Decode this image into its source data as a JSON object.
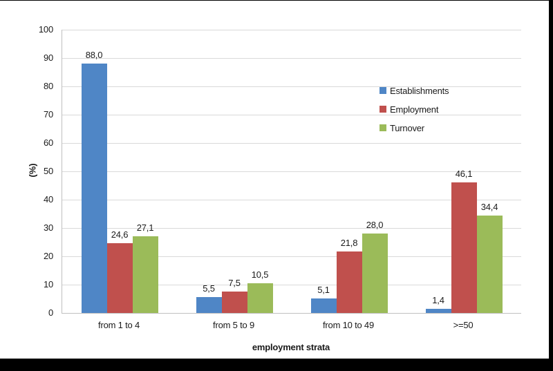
{
  "chart_data": {
    "type": "bar",
    "title": "",
    "xlabel": "employment strata",
    "ylabel": "(%)",
    "categories": [
      "from 1 to 4",
      "from 5 to 9",
      "from 10 to 49",
      ">=50"
    ],
    "series": [
      {
        "name": "Establishments",
        "color": "#4F86C6",
        "values": [
          88.0,
          5.5,
          5.1,
          1.4
        ],
        "labels": [
          "88,0",
          "5,5",
          "5,1",
          "1,4"
        ]
      },
      {
        "name": "Employment",
        "color": "#C0504D",
        "values": [
          24.6,
          7.5,
          21.8,
          46.1
        ],
        "labels": [
          "24,6",
          "7,5",
          "21,8",
          "46,1"
        ]
      },
      {
        "name": "Turnover",
        "color": "#9BBB59",
        "values": [
          27.1,
          10.5,
          28.0,
          34.4
        ],
        "labels": [
          "27,1",
          "10,5",
          "28,0",
          "34,4"
        ]
      }
    ],
    "ylim": [
      0,
      100
    ],
    "yticks": [
      0,
      10,
      20,
      30,
      40,
      50,
      60,
      70,
      80,
      90,
      100
    ],
    "grid": true,
    "legend_position": "upper-right-inside",
    "decimal_separator": ","
  },
  "colors": {
    "background": "#FFFFFF",
    "frame": "#000000",
    "gridline": "#D9D9D9",
    "axis_line": "#BFBFBF",
    "text": "#1A1A1A"
  }
}
